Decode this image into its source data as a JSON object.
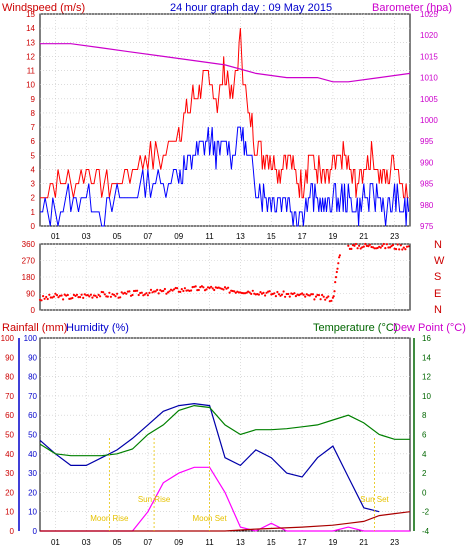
{
  "header": {
    "wind_label": "Windspeed (m/s)",
    "title": "24 hour graph day : 09 May 2015",
    "baro_label": "Barometer (hpa)"
  },
  "panel3_labels": {
    "rain": "Rainfall (mm)",
    "humidity": "Humidity (%)",
    "temperature": "Temperature (°C)",
    "dewpoint": "Dew Point (°C)"
  },
  "direction_letters": [
    "N",
    "W",
    "S",
    "E",
    "N"
  ],
  "hour_ticks": [
    "01",
    "03",
    "05",
    "07",
    "09",
    "11",
    "13",
    "15",
    "17",
    "19",
    "21",
    "23"
  ],
  "events": [
    {
      "label": "Moon Rise",
      "x": 4.5
    },
    {
      "label": "Sun Rise",
      "x": 7.4
    },
    {
      "label": "Moon Set",
      "x": 11.0
    },
    {
      "label": "Sun Set",
      "x": 21.7
    }
  ],
  "colors": {
    "wind_gust": "#ff0000",
    "wind_avg": "#0000ff",
    "barometer": "#cc00cc",
    "direction": "#ff0000",
    "humidity": "#0000aa",
    "temperature": "#008000",
    "dewpoint_or_solar": "#ff00ff",
    "rain": "#aa0000",
    "events": "#e6c200",
    "grid": "#c8c8c8"
  },
  "chart_data": [
    {
      "type": "line",
      "title": "24 hour graph day : 09 May 2015",
      "x_unit": "hour",
      "xlim": [
        0,
        24
      ],
      "left_axis": {
        "label": "Windspeed (m/s)",
        "ylim": [
          0,
          15
        ],
        "ticks": [
          0,
          1,
          2,
          3,
          4,
          5,
          6,
          7,
          8,
          9,
          10,
          11,
          12,
          13,
          14,
          15
        ]
      },
      "right_axis": {
        "label": "Barometer (hpa)",
        "ylim": [
          975,
          1025
        ],
        "ticks": [
          975,
          980,
          985,
          990,
          995,
          1000,
          1005,
          1010,
          1015,
          1020,
          1025
        ]
      },
      "series": [
        {
          "name": "gust",
          "axis": "left",
          "x": [
            0,
            1,
            2,
            3,
            4,
            5,
            6,
            7,
            8,
            9,
            9.5,
            10,
            10.5,
            11,
            11.5,
            12,
            12.5,
            13,
            13.5,
            14,
            14.5,
            15,
            15.5,
            16,
            16.5,
            17,
            17.5,
            18,
            18.5,
            19,
            19.5,
            20,
            20.5,
            21,
            21.5,
            22,
            22.5,
            23,
            23.5,
            24
          ],
          "y": [
            2,
            3,
            3,
            4,
            3,
            3,
            4,
            5,
            5,
            7,
            8,
            9,
            10,
            10,
            9,
            11,
            9,
            13,
            8,
            6,
            5,
            5,
            4,
            5,
            4,
            3,
            5,
            4,
            3,
            4,
            5,
            4,
            3,
            4,
            5,
            4,
            3,
            5,
            3,
            2
          ]
        },
        {
          "name": "average",
          "axis": "left",
          "x": [
            0,
            1,
            2,
            3,
            4,
            5,
            6,
            7,
            8,
            9,
            9.5,
            10,
            10.5,
            11,
            11.5,
            12,
            12.5,
            13,
            13.5,
            14,
            14.5,
            15,
            15.5,
            16,
            16.5,
            17,
            17.5,
            18,
            18.5,
            19,
            19.5,
            20,
            20.5,
            21,
            21.5,
            22,
            22.5,
            23,
            23.5,
            24
          ],
          "y": [
            1,
            1,
            2,
            2,
            1,
            2,
            2,
            3,
            3,
            4,
            4,
            5,
            6,
            6,
            5,
            6,
            5,
            7,
            5,
            3,
            2,
            2,
            2,
            2,
            1,
            1,
            2,
            2,
            1,
            2,
            2,
            2,
            1,
            2,
            2,
            2,
            1,
            2,
            1,
            1
          ]
        },
        {
          "name": "barometer",
          "axis": "right",
          "x": [
            0,
            2,
            4,
            6,
            8,
            10,
            12,
            14,
            16,
            18,
            19,
            20,
            22,
            24
          ],
          "y": [
            1018,
            1018,
            1017,
            1016,
            1015,
            1014,
            1013,
            1011,
            1010,
            1010,
            1009,
            1009,
            1010,
            1011
          ]
        }
      ]
    },
    {
      "type": "scatter",
      "x_unit": "hour",
      "xlim": [
        0,
        24
      ],
      "left_axis": {
        "ylim": [
          0,
          360
        ],
        "ticks": [
          0,
          90,
          180,
          270,
          360
        ]
      },
      "series": [
        {
          "name": "direction",
          "x": [
            0,
            1,
            2,
            3,
            4,
            5,
            6,
            7,
            8,
            9,
            10,
            11,
            12,
            13,
            14,
            15,
            16,
            17,
            18,
            19,
            19.5,
            20,
            21,
            22,
            23,
            24
          ],
          "y": [
            60,
            75,
            70,
            80,
            85,
            80,
            90,
            95,
            100,
            110,
            115,
            120,
            110,
            105,
            100,
            90,
            85,
            80,
            70,
            60,
            340,
            345,
            350,
            350,
            345,
            0
          ]
        }
      ]
    },
    {
      "type": "line",
      "x_unit": "hour",
      "xlim": [
        0,
        24
      ],
      "left_axis": {
        "label": "Rainfall (mm)",
        "ylim": [
          0,
          100
        ],
        "ticks": [
          0,
          10,
          20,
          30,
          40,
          50,
          60,
          70,
          80,
          90,
          100
        ]
      },
      "left_axis_2": {
        "label": "Humidity (%)",
        "ylim": [
          0,
          100
        ],
        "ticks": [
          0,
          10,
          20,
          30,
          40,
          50,
          60,
          70,
          80,
          90,
          100
        ]
      },
      "right_axis": {
        "label": "Temperature (°C)",
        "ylim": [
          -4,
          16
        ],
        "ticks": [
          -4,
          -2,
          0,
          2,
          4,
          6,
          8,
          10,
          12,
          14,
          16
        ]
      },
      "series": [
        {
          "name": "humidity",
          "axis": "left",
          "x": [
            0,
            1,
            2,
            3,
            4,
            5,
            6,
            7,
            8,
            9,
            10,
            11,
            12,
            13,
            14,
            15,
            16,
            17,
            18,
            19,
            20,
            21,
            22
          ],
          "y": [
            47,
            40,
            34,
            34,
            38,
            42,
            48,
            55,
            62,
            65,
            66,
            65,
            38,
            34,
            42,
            38,
            30,
            28,
            38,
            44,
            28,
            12,
            10
          ]
        },
        {
          "name": "temperature",
          "axis": "right",
          "x": [
            0,
            1,
            2,
            3,
            4,
            5,
            6,
            7,
            8,
            9,
            10,
            11,
            12,
            13,
            14,
            15,
            16,
            17,
            18,
            19,
            20,
            21,
            22,
            23,
            24
          ],
          "y": [
            5,
            4,
            3.8,
            3.8,
            3.8,
            4,
            4.5,
            6,
            7,
            8.5,
            9,
            8.8,
            7,
            6,
            6.5,
            6.5,
            6.6,
            6.8,
            7,
            7.5,
            8,
            7.2,
            6,
            5.5,
            5.5
          ]
        },
        {
          "name": "solar",
          "axis": "left",
          "x": [
            0,
            6,
            7,
            8,
            9,
            10,
            11,
            12,
            13,
            14,
            15,
            16,
            17,
            18,
            19,
            20,
            21,
            24
          ],
          "y": [
            0,
            0,
            10,
            25,
            30,
            33,
            33,
            20,
            2,
            0,
            4,
            0,
            0,
            0,
            0,
            2,
            0,
            0
          ]
        },
        {
          "name": "rain",
          "axis": "left",
          "x": [
            0,
            12,
            14,
            17,
            19,
            20,
            21,
            22,
            23,
            24
          ],
          "y": [
            0,
            0,
            1,
            2,
            3,
            4,
            5,
            8,
            9,
            10
          ]
        }
      ]
    }
  ]
}
